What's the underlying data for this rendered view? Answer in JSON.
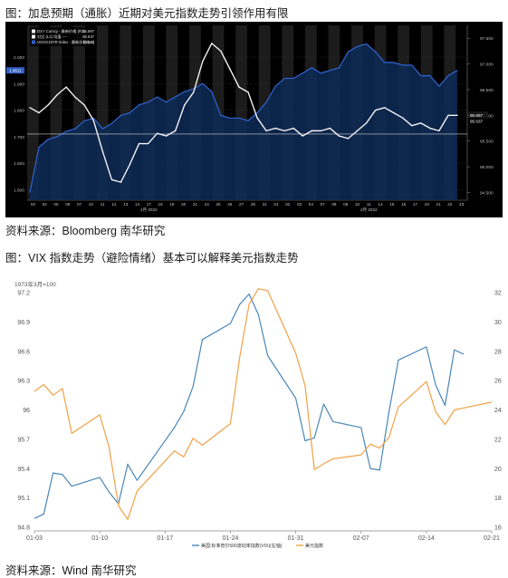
{
  "captions": {
    "fig1_title": "图：加息预期（通胀）近期对美元指数走势引领作用有限",
    "fig1_source": "资料来源：Bloomberg 南华研究",
    "fig2_title": "图：VIX 指数走势（避险情绪）基本可以解释美元指数走势",
    "fig2_source": "资料来源：Wind 南华研究"
  },
  "chart_data": [
    {
      "type": "line",
      "theme": "dark",
      "legend": {
        "placement": "top-left",
        "entries": [
          {
            "label": "DXY Curncy - 最新价格 (R1)",
            "value": "95.997"
          },
          {
            "label": "对比 (L1) 均值 ----",
            "value": "95.637"
          },
          {
            "label": "USGG10YR Index - 最新价格 (L1)",
            "value": "1.9511"
          }
        ]
      },
      "left_axis": {
        "ticks": [
          "2.000",
          "1.900",
          "1.800",
          "1.700",
          "1.600",
          "1.500"
        ],
        "range": [
          1.46,
          2.12
        ]
      },
      "right_axis": {
        "ticks": [
          "97.500",
          "97.000",
          "96.500",
          "96.000",
          "95.500",
          "95.000",
          "94.500"
        ],
        "range": [
          94.35,
          97.75
        ]
      },
      "x_axis": {
        "ticks": [
          "03",
          "04",
          "05",
          "06",
          "07",
          "10",
          "11",
          "12",
          "13",
          "14",
          "17",
          "18",
          "19",
          "20",
          "21",
          "24",
          "25",
          "26",
          "27",
          "28",
          "31",
          "01",
          "02",
          "03",
          "04",
          "07",
          "08",
          "09",
          "10",
          "11",
          "14",
          "15",
          "16",
          "17",
          "18",
          "21",
          "22",
          "23"
        ],
        "month_labels": [
          "1月 2022",
          "2月 2022"
        ]
      },
      "flags": {
        "left_last": "1.9511",
        "right_last_1": "95.997",
        "right_last_2": "95.637"
      },
      "reference_line": 95.637,
      "series": [
        {
          "name": "DXY Curncy - 最新价格 (R1)",
          "color": "#f2f2f2",
          "axis": "right",
          "values": [
            96.15,
            96.05,
            96.2,
            96.4,
            96.55,
            96.35,
            96.2,
            95.9,
            95.3,
            94.75,
            94.7,
            95.05,
            95.45,
            95.45,
            95.65,
            95.6,
            95.7,
            96.2,
            96.45,
            97.05,
            97.4,
            97.25,
            96.9,
            96.55,
            96.45,
            95.95,
            95.7,
            95.75,
            95.7,
            95.75,
            95.6,
            95.7,
            95.7,
            95.75,
            95.6,
            95.55,
            95.7,
            95.85,
            96.1,
            96.15,
            96.05,
            95.95,
            95.8,
            95.85,
            95.75,
            95.7,
            96.0,
            96.0
          ]
        },
        {
          "name": "USGG10YR Index - 最新价格 (L1)",
          "color": "#2e5fc5",
          "axis": "left",
          "values": [
            1.49,
            1.66,
            1.69,
            1.7,
            1.72,
            1.73,
            1.76,
            1.77,
            1.73,
            1.75,
            1.78,
            1.79,
            1.82,
            1.83,
            1.85,
            1.83,
            1.85,
            1.87,
            1.88,
            1.9,
            1.87,
            1.78,
            1.77,
            1.77,
            1.76,
            1.79,
            1.83,
            1.89,
            1.92,
            1.92,
            1.94,
            1.96,
            1.94,
            1.95,
            1.96,
            2.02,
            2.04,
            2.05,
            2.02,
            1.98,
            1.98,
            1.97,
            1.97,
            1.93,
            1.93,
            1.89,
            1.93,
            1.95
          ]
        }
      ]
    },
    {
      "type": "line",
      "top_label": "1973年3月=100",
      "left_axis": {
        "ticks": [
          "97.2",
          "96.9",
          "96.6",
          "96.3",
          "96",
          "95.7",
          "95.4",
          "95.1",
          "94.8"
        ],
        "range": [
          94.8,
          97.2
        ]
      },
      "right_axis": {
        "ticks": [
          "32",
          "30",
          "28",
          "26",
          "24",
          "22",
          "20",
          "18",
          "16"
        ],
        "range": [
          16,
          32
        ]
      },
      "x_axis": {
        "ticks": [
          "01-03",
          "01-10",
          "01-17",
          "01-24",
          "01-31",
          "02-07",
          "02-14",
          "02-21"
        ],
        "range": [
          "2022-01-03",
          "2022-02-21"
        ]
      },
      "legend": {
        "placement": "bottom-center"
      },
      "series": [
        {
          "name": "美国:标准普尔500波动率指数(VIX)(右轴)",
          "color": "#4a86b8",
          "axis": "right",
          "x": [
            "2022-01-03",
            "2022-01-04",
            "2022-01-05",
            "2022-01-06",
            "2022-01-07",
            "2022-01-10",
            "2022-01-11",
            "2022-01-12",
            "2022-01-13",
            "2022-01-14",
            "2022-01-18",
            "2022-01-19",
            "2022-01-20",
            "2022-01-21",
            "2022-01-24",
            "2022-01-25",
            "2022-01-26",
            "2022-01-27",
            "2022-01-28",
            "2022-01-31",
            "2022-02-01",
            "2022-02-02",
            "2022-02-03",
            "2022-02-04",
            "2022-02-07",
            "2022-02-08",
            "2022-02-09",
            "2022-02-10",
            "2022-02-11",
            "2022-02-14",
            "2022-02-15",
            "2022-02-16",
            "2022-02-17",
            "2022-02-18"
          ],
          "values": [
            16.6,
            16.9,
            19.7,
            19.6,
            18.8,
            19.4,
            18.4,
            17.6,
            20.3,
            19.2,
            22.8,
            23.9,
            25.6,
            28.8,
            29.9,
            31.2,
            31.9,
            30.5,
            27.7,
            24.8,
            21.9,
            22.1,
            24.4,
            23.2,
            22.8,
            20.0,
            19.9,
            23.9,
            27.4,
            28.3,
            25.7,
            24.3,
            28.1,
            27.8
          ]
        },
        {
          "name": "美元指数",
          "color": "#f0a146",
          "axis": "left",
          "x": [
            "2022-01-03",
            "2022-01-04",
            "2022-01-05",
            "2022-01-06",
            "2022-01-07",
            "2022-01-10",
            "2022-01-11",
            "2022-01-12",
            "2022-01-13",
            "2022-01-14",
            "2022-01-18",
            "2022-01-19",
            "2022-01-20",
            "2022-01-21",
            "2022-01-24",
            "2022-01-25",
            "2022-01-26",
            "2022-01-27",
            "2022-01-28",
            "2022-01-31",
            "2022-02-01",
            "2022-02-02",
            "2022-02-03",
            "2022-02-04",
            "2022-02-07",
            "2022-02-08",
            "2022-02-09",
            "2022-02-10",
            "2022-02-11",
            "2022-02-14",
            "2022-02-15",
            "2022-02-16",
            "2022-02-17",
            "2022-02-18",
            "2022-02-21"
          ],
          "values": [
            96.19,
            96.26,
            96.15,
            96.22,
            95.76,
            95.95,
            95.62,
            95.02,
            94.88,
            95.17,
            95.58,
            95.52,
            95.71,
            95.64,
            95.86,
            96.54,
            97.08,
            97.24,
            97.22,
            96.58,
            96.25,
            95.39,
            95.45,
            95.5,
            95.54,
            95.65,
            95.61,
            95.72,
            96.03,
            96.29,
            95.98,
            95.85,
            96.0,
            96.02,
            96.08
          ]
        }
      ]
    }
  ]
}
